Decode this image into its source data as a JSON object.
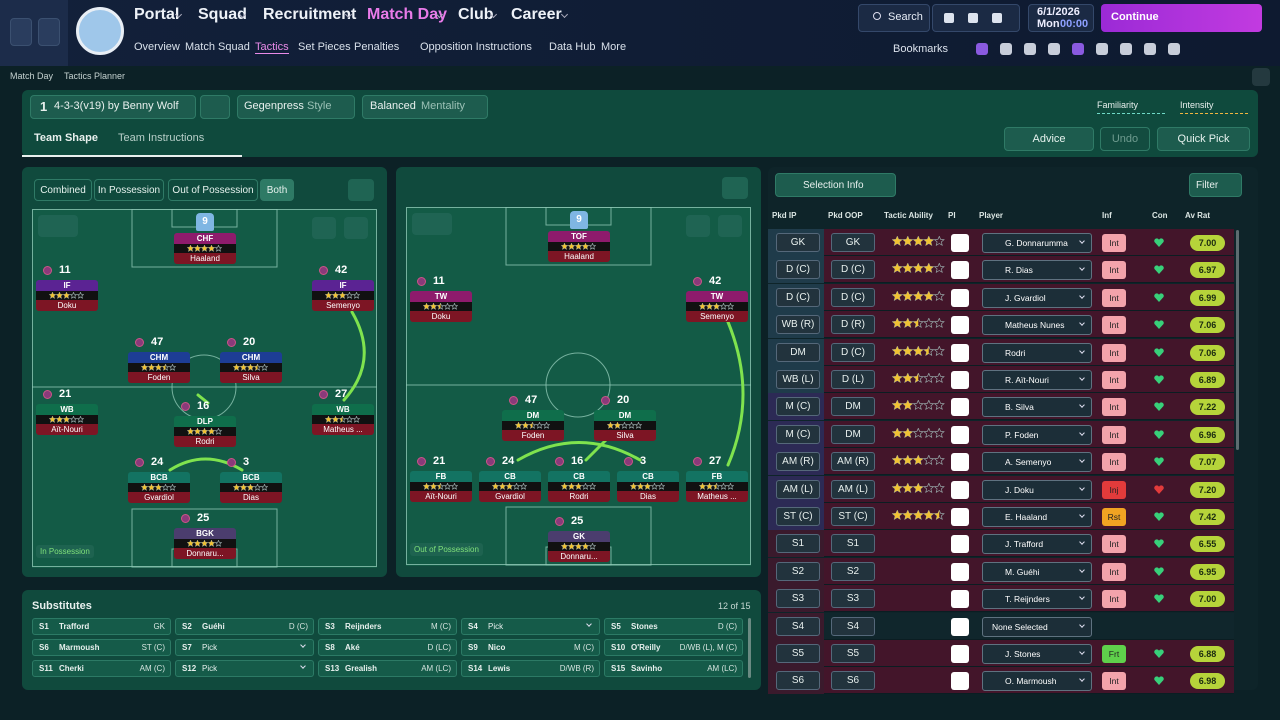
{
  "nav": {
    "tabs": [
      "Portal",
      "Squad",
      "Recruitment",
      "Match Day",
      "Club",
      "Career"
    ],
    "subtabs": [
      "Overview",
      "Match Squad",
      "Tactics",
      "Set Pieces",
      "Penalties",
      "Opposition Instructions",
      "Data Hub",
      "More"
    ],
    "search": "Search",
    "date": "6/1/2026",
    "day": "Mon",
    "time": "00:00",
    "continue": "Continue",
    "bookmarks": "Bookmarks"
  },
  "breadcrumb": [
    "Match Day",
    "Tactics Planner"
  ],
  "tactic": {
    "number": "1",
    "name": "4-3-3(v19) by Benny Wolf",
    "style": "Gegenpress",
    "style_label": "Style",
    "mentality": "Balanced",
    "mentality_label": "Mentality",
    "familiarity": "Familiarity",
    "intensity": "Intensity"
  },
  "view_tabs": [
    "Team Shape",
    "Team Instructions"
  ],
  "actions": {
    "advice": "Advice",
    "undo": "Undo",
    "quick_pick": "Quick Pick"
  },
  "phases": [
    "Combined",
    "In Possession",
    "Out of Possession",
    "Both"
  ],
  "pitches": [
    {
      "label": "In Possession",
      "players": [
        {
          "number": 9,
          "role": "CHF",
          "name": "Haaland",
          "stars": 4,
          "color": "#8e1b6c"
        },
        {
          "number": 11,
          "role": "IF",
          "name": "Doku",
          "stars": 3,
          "color": "#5b2393"
        },
        {
          "number": 42,
          "role": "IF",
          "name": "Semenyo",
          "stars": 3,
          "color": "#5b2393"
        },
        {
          "number": 47,
          "role": "CHM",
          "name": "Foden",
          "stars": 3.5,
          "color": "#1d3d95"
        },
        {
          "number": 20,
          "role": "CHM",
          "name": "Silva",
          "stars": 3.5,
          "color": "#1d3d95"
        },
        {
          "number": 21,
          "role": "WB",
          "name": "Aït-Nouri",
          "stars": 3,
          "color": "#0f6e4b"
        },
        {
          "number": 16,
          "role": "DLP",
          "name": "Rodri",
          "stars": 4,
          "color": "#0f6e4b"
        },
        {
          "number": 27,
          "role": "WB",
          "name": "Matheus ...",
          "stars": 2.5,
          "color": "#0f6e4b"
        },
        {
          "number": 24,
          "role": "BCB",
          "name": "Gvardiol",
          "stars": 3,
          "color": "#137362"
        },
        {
          "number": 3,
          "role": "BCB",
          "name": "Dias",
          "stars": 3,
          "color": "#137362"
        },
        {
          "number": 25,
          "role": "BGK",
          "name": "Donnaru...",
          "stars": 4,
          "color": "#4b3d6e"
        }
      ]
    },
    {
      "label": "Out of Possession",
      "players": [
        {
          "number": 9,
          "role": "TOF",
          "name": "Haaland",
          "stars": 4,
          "color": "#8e1b6c"
        },
        {
          "number": 11,
          "role": "TW",
          "name": "Doku",
          "stars": 2.5,
          "color": "#8e1b6c"
        },
        {
          "number": 42,
          "role": "TW",
          "name": "Semenyo",
          "stars": 3,
          "color": "#8e1b6c"
        },
        {
          "number": 47,
          "role": "DM",
          "name": "Foden",
          "stars": 2.5,
          "color": "#0f6e4b"
        },
        {
          "number": 20,
          "role": "DM",
          "name": "Silva",
          "stars": 2,
          "color": "#0f6e4b"
        },
        {
          "number": 21,
          "role": "FB",
          "name": "Aït-Nouri",
          "stars": 2.5,
          "color": "#137362"
        },
        {
          "number": 24,
          "role": "CB",
          "name": "Gvardiol",
          "stars": 3,
          "color": "#137362"
        },
        {
          "number": 16,
          "role": "CB",
          "name": "Rodri",
          "stars": 3,
          "color": "#137362"
        },
        {
          "number": 3,
          "role": "CB",
          "name": "Dias",
          "stars": 3,
          "color": "#137362"
        },
        {
          "number": 27,
          "role": "FB",
          "name": "Matheus ...",
          "stars": 2.5,
          "color": "#137362"
        },
        {
          "number": 25,
          "role": "GK",
          "name": "Donnaru...",
          "stars": 4,
          "color": "#4b3d6e"
        }
      ]
    }
  ],
  "substitutes": {
    "title": "Substitutes",
    "count": "12 of 15",
    "slots": [
      {
        "slot": "S1",
        "name": "Trafford",
        "position": "GK"
      },
      {
        "slot": "S2",
        "name": "Guéhi",
        "position": "D (C)"
      },
      {
        "slot": "S3",
        "name": "Reijnders",
        "position": "M (C)"
      },
      {
        "slot": "S4",
        "name": "Pick",
        "position": null
      },
      {
        "slot": "S5",
        "name": "Stones",
        "position": "D (C)"
      },
      {
        "slot": "S6",
        "name": "Marmoush",
        "position": "ST (C)"
      },
      {
        "slot": "S7",
        "name": "Pick",
        "position": null
      },
      {
        "slot": "S8",
        "name": "Aké",
        "position": "D (LC)"
      },
      {
        "slot": "S9",
        "name": "Nico",
        "position": "M (C)"
      },
      {
        "slot": "S10",
        "name": "O'Reilly",
        "position": "D/WB (L), M (C)"
      },
      {
        "slot": "S11",
        "name": "Cherki",
        "position": "AM (C)"
      },
      {
        "slot": "S12",
        "name": "Pick",
        "position": null
      },
      {
        "slot": "S13",
        "name": "Grealish",
        "position": "AM (LC)"
      },
      {
        "slot": "S14",
        "name": "Lewis",
        "position": "D/WB (R)"
      },
      {
        "slot": "S15",
        "name": "Savinho",
        "position": "AM (LC)"
      }
    ]
  },
  "selection": {
    "title": "Selection Info",
    "filter": "Filter",
    "columns": [
      "Pkd IP",
      "Pkd OOP",
      "Tactic Ability",
      "PI",
      "Player",
      "Inf",
      "Con",
      "Av Rat"
    ],
    "rows": [
      {
        "ip": "GK",
        "oop": "GK",
        "ability": 4,
        "player": "G. Donnarumma",
        "inf": "Int",
        "inf_color": "#f3a3ab",
        "rating": "7.00"
      },
      {
        "ip": "D (C)",
        "oop": "D (C)",
        "ability": 4,
        "player": "R. Dias",
        "inf": "Int",
        "inf_color": "#f3a3ab",
        "rating": "6.97"
      },
      {
        "ip": "D (C)",
        "oop": "D (C)",
        "ability": 4,
        "player": "J. Gvardiol",
        "inf": "Int",
        "inf_color": "#f3a3ab",
        "rating": "6.99"
      },
      {
        "ip": "WB (R)",
        "oop": "D (R)",
        "ability": 2.5,
        "player": "Matheus Nunes",
        "inf": "Int",
        "inf_color": "#f3a3ab",
        "rating": "7.06"
      },
      {
        "ip": "DM",
        "oop": "D (C)",
        "ability": 3.5,
        "player": "Rodri",
        "inf": "Int",
        "inf_color": "#f3a3ab",
        "rating": "7.06"
      },
      {
        "ip": "WB (L)",
        "oop": "D (L)",
        "ability": 2.5,
        "player": "R. Aït-Nouri",
        "inf": "Int",
        "inf_color": "#f3a3ab",
        "rating": "6.89"
      },
      {
        "ip": "M (C)",
        "oop": "DM",
        "ability": 2,
        "player": "B. Silva",
        "inf": "Int",
        "inf_color": "#f3a3ab",
        "rating": "7.22"
      },
      {
        "ip": "M (C)",
        "oop": "DM",
        "ability": 2,
        "player": "P. Foden",
        "inf": "Int",
        "inf_color": "#f3a3ab",
        "rating": "6.96"
      },
      {
        "ip": "AM (R)",
        "oop": "AM (R)",
        "ability": 3,
        "player": "A. Semenyo",
        "inf": "Int",
        "inf_color": "#f3a3ab",
        "rating": "7.07"
      },
      {
        "ip": "AM (L)",
        "oop": "AM (L)",
        "ability": 3,
        "player": "J. Doku",
        "inf": "Inj",
        "inf_color": "#e23b3b",
        "rating": "7.20"
      },
      {
        "ip": "ST (C)",
        "oop": "ST (C)",
        "ability": 4.5,
        "player": "E. Haaland",
        "inf": "Rst",
        "inf_color": "#f0a322",
        "rating": "7.42"
      },
      {
        "ip": "S1",
        "oop": "S1",
        "ability": null,
        "player": "J. Trafford",
        "inf": "Int",
        "inf_color": "#f3a3ab",
        "rating": "6.55"
      },
      {
        "ip": "S2",
        "oop": "S2",
        "ability": null,
        "player": "M. Guéhi",
        "inf": "Int",
        "inf_color": "#f3a3ab",
        "rating": "6.95"
      },
      {
        "ip": "S3",
        "oop": "S3",
        "ability": null,
        "player": "T. Reijnders",
        "inf": "Int",
        "inf_color": "#f3a3ab",
        "rating": "7.00"
      },
      {
        "ip": "S4",
        "oop": "S4",
        "ability": null,
        "player": "None Selected",
        "inf": null,
        "inf_color": null,
        "rating": null
      },
      {
        "ip": "S5",
        "oop": "S5",
        "ability": null,
        "player": "J. Stones",
        "inf": "Frt",
        "inf_color": "#5fd04b",
        "rating": "6.88"
      },
      {
        "ip": "S6",
        "oop": "S6",
        "ability": null,
        "player": "O. Marmoush",
        "inf": "Int",
        "inf_color": "#f3a3ab",
        "rating": "6.98"
      }
    ]
  }
}
